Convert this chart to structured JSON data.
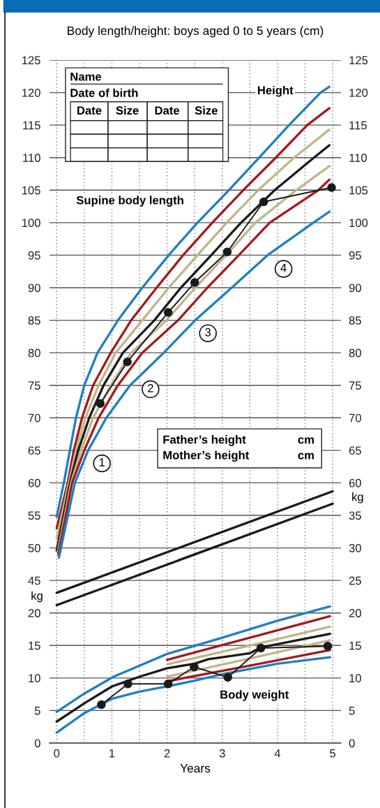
{
  "chart_data": [
    {
      "type": "line",
      "title": "Body length/height: boys aged 0 to 5 years (cm)",
      "xlabel": "Years",
      "xlim": [
        -0.13,
        5.15
      ],
      "xticks": [
        0,
        {
          "value": 0.5,
          "label": null
        },
        1,
        {
          "value": 1.5,
          "label": null
        },
        2,
        {
          "value": 2.5,
          "label": null
        },
        3,
        {
          "value": 3.5,
          "label": null
        },
        4,
        {
          "value": 4.5,
          "label": null
        },
        5
      ],
      "ylim": [
        20,
        125
      ],
      "yticks": [
        45,
        50,
        55,
        60,
        65,
        70,
        75,
        80,
        85,
        90,
        95,
        100,
        105,
        110,
        115,
        120,
        125
      ],
      "y2lim": [
        20,
        125
      ],
      "y2ticks": [
        60,
        65,
        70,
        75,
        80,
        85,
        90,
        95,
        100,
        105,
        110,
        115,
        120,
        125
      ],
      "grid": true,
      "series": [
        {
          "color": "#1f7fc1",
          "x": [
            0,
            0.13,
            0.24,
            0.35,
            0.5,
            0.74,
            1.11,
            1.55,
            2.03,
            2.55,
            3.12,
            3.67,
            4.21,
            4.78,
            4.94
          ],
          "values": [
            54.8,
            60,
            65,
            70,
            75,
            80,
            85,
            90,
            95,
            100,
            105,
            110,
            115,
            120,
            120.9
          ]
        },
        {
          "color": "#a31a1e",
          "x": [
            0,
            0.2,
            0.31,
            0.46,
            0.66,
            0.98,
            1.35,
            1.81,
            2.29,
            2.82,
            3.38,
            3.97,
            4.54,
            4.94
          ],
          "values": [
            53,
            60,
            65,
            70,
            75,
            80,
            85,
            90,
            95,
            100,
            105,
            110,
            115,
            117.6
          ]
        },
        {
          "color": "#c1b58a",
          "x": [
            0,
            0.22,
            0.35,
            0.52,
            0.76,
            1.07,
            1.55,
            2.03,
            2.55,
            3.08,
            3.65,
            4.3,
            4.94
          ],
          "values": [
            51.4,
            60,
            65,
            70,
            75,
            80,
            85,
            90,
            95,
            100,
            105,
            110,
            114.3
          ]
        },
        {
          "color": "#1a1a1a",
          "x": [
            0,
            0.24,
            0.39,
            0.59,
            0.85,
            1.2,
            1.77,
            2.25,
            2.8,
            3.34,
            3.95,
            4.66,
            4.94
          ],
          "values": [
            49.6,
            60,
            65,
            70,
            75,
            80,
            85,
            90,
            95,
            100,
            105,
            110,
            111.9
          ]
        },
        {
          "color": "#c1b58a",
          "x": [
            0.02,
            0.26,
            0.44,
            0.66,
            0.98,
            1.35,
            1.99,
            2.51,
            3.07,
            3.6,
            4.34,
            4.94
          ],
          "values": [
            49.3,
            60,
            65,
            70,
            75,
            80,
            85,
            90,
            95,
            100,
            105,
            108.7
          ]
        },
        {
          "color": "#a31a1e",
          "x": [
            0.03,
            0.28,
            0.5,
            0.76,
            1.11,
            1.55,
            2.2,
            2.73,
            3.3,
            3.86,
            4.74,
            4.94
          ],
          "values": [
            49.0,
            60,
            65,
            70,
            75,
            80,
            85,
            90,
            95,
            100,
            105,
            106.6
          ]
        },
        {
          "color": "#1f7fc1",
          "x": [
            0.04,
            0.33,
            0.57,
            0.9,
            1.33,
            1.94,
            2.51,
            3.17,
            3.82,
            4.65,
            4.94
          ],
          "values": [
            48.5,
            60,
            65,
            70,
            75,
            80,
            85,
            90,
            95,
            100,
            101.7
          ]
        },
        {
          "color": "#1a1a1a",
          "marker": "circle",
          "x": [
            0.79,
            1.28,
            2.02,
            2.5,
            3.09,
            3.75,
            4.98
          ],
          "values": [
            72.2,
            78.6,
            86.2,
            90.8,
            95.5,
            103.2,
            105.4
          ]
        }
      ],
      "annotations": [
        {
          "text": "1",
          "x": 0.82,
          "y": 63.0
        },
        {
          "text": "2",
          "x": 1.7,
          "y": 74.4
        },
        {
          "text": "3",
          "x": 2.74,
          "y": 83.0
        },
        {
          "text": "4",
          "x": 4.11,
          "y": 92.9
        },
        "Height",
        "Supine body length",
        "Name",
        "Date of birth",
        "Date",
        "Size",
        "Date",
        "Size",
        "Father’s height",
        "cm",
        "Mother’s height",
        "cm"
      ]
    },
    {
      "type": "line",
      "xlim": [
        -0.13,
        5.15
      ],
      "xticks": [
        0,
        {
          "value": 0.5,
          "label": null
        },
        1,
        {
          "value": 1.5,
          "label": null
        },
        2,
        {
          "value": 2.5,
          "label": null
        },
        3,
        {
          "value": 3.5,
          "label": null
        },
        4,
        {
          "value": 4.5,
          "label": null
        },
        5
      ],
      "tick_labels": "y",
      "ylim": [
        0,
        105
      ],
      "yticks": [
        0,
        5,
        10,
        15,
        20
      ],
      "y2lim": [
        0,
        105
      ],
      "y2ticks": [
        0,
        5,
        10,
        15,
        20,
        25,
        30,
        35
      ],
      "grid": "y",
      "series": [
        {
          "color": "#1a1a1a",
          "x": [
            0,
            5
          ],
          "values": [
            23.1,
            38.7
          ]
        },
        {
          "color": "#1a1a1a",
          "x": [
            0,
            5
          ],
          "values": [
            21.2,
            36.8
          ]
        },
        {
          "color": "#1f7fc1",
          "x": [
            0,
            0.5,
            1.03,
            1.5,
            2,
            3,
            4,
            4.95
          ],
          "values": [
            4.8,
            7.6,
            10.2,
            11.9,
            13.7,
            16.2,
            18.8,
            21.0
          ]
        },
        {
          "color": "#a31a1e",
          "x": [
            2,
            3.5,
            4.95
          ],
          "values": [
            12.8,
            16.2,
            19.5
          ]
        },
        {
          "color": "#c1b58a",
          "x": [
            2,
            3.5,
            4.95
          ],
          "values": [
            12.1,
            15.0,
            17.9
          ]
        },
        {
          "color": "#1a1a1a",
          "x": [
            0,
            0.5,
            1,
            1.3,
            1.5,
            2,
            2.5,
            2.75,
            3,
            3.5,
            3.7,
            4,
            4.95
          ],
          "values": [
            3.3,
            6.1,
            8.7,
            9.6,
            10.2,
            11.5,
            12.2,
            12.9,
            13.2,
            13.8,
            14.7,
            15.2,
            16.8
          ]
        },
        {
          "color": "#c1b58a",
          "x": [
            2,
            3.5,
            4.95
          ],
          "values": [
            10.2,
            13.0,
            15.8
          ]
        },
        {
          "color": "#a31a1e",
          "x": [
            2,
            3.5,
            4.95
          ],
          "values": [
            9.5,
            11.9,
            14.3
          ]
        },
        {
          "color": "#1f7fc1",
          "x": [
            0,
            0.5,
            1,
            1.5,
            2,
            2.5,
            3,
            3.5,
            4,
            4.95
          ],
          "values": [
            1.6,
            4.6,
            6.8,
            7.9,
            8.7,
            9.6,
            10.6,
            11.4,
            12.2,
            13.2
          ]
        },
        {
          "color": "#1a1a1a",
          "marker": "circle",
          "x": [
            0.81,
            1.29,
            2.02,
            2.49,
            3.1,
            3.7,
            4.91
          ],
          "values": [
            5.9,
            9.1,
            9.1,
            11.7,
            10.1,
            14.6,
            14.9
          ]
        }
      ],
      "annotations": [
        "Body weight",
        "kg",
        "kg"
      ]
    }
  ]
}
